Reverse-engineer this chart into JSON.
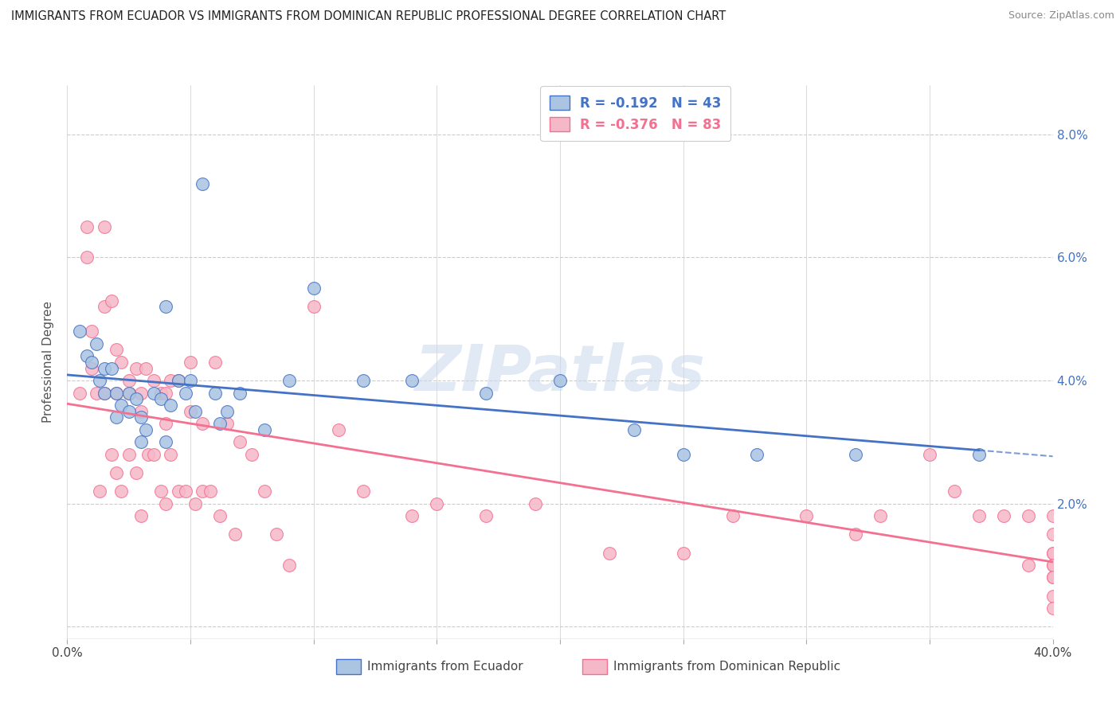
{
  "title": "IMMIGRANTS FROM ECUADOR VS IMMIGRANTS FROM DOMINICAN REPUBLIC PROFESSIONAL DEGREE CORRELATION CHART",
  "source": "Source: ZipAtlas.com",
  "ylabel": "Professional Degree",
  "y_ticks": [
    0.0,
    0.02,
    0.04,
    0.06,
    0.08
  ],
  "y_tick_labels": [
    "",
    "2.0%",
    "4.0%",
    "6.0%",
    "8.0%"
  ],
  "x_range": [
    0.0,
    0.4
  ],
  "y_range": [
    -0.002,
    0.088
  ],
  "ecuador_R": -0.192,
  "ecuador_N": 43,
  "domrep_R": -0.376,
  "domrep_N": 83,
  "ecuador_color": "#aac4e2",
  "domrep_color": "#f5b8c8",
  "ecuador_line_color": "#4472c4",
  "domrep_line_color": "#f47090",
  "watermark": "ZIPatlas",
  "ecuador_scatter_x": [
    0.005,
    0.008,
    0.01,
    0.012,
    0.013,
    0.015,
    0.015,
    0.018,
    0.02,
    0.02,
    0.022,
    0.025,
    0.025,
    0.028,
    0.03,
    0.03,
    0.032,
    0.035,
    0.038,
    0.04,
    0.04,
    0.042,
    0.045,
    0.048,
    0.05,
    0.052,
    0.055,
    0.06,
    0.062,
    0.065,
    0.07,
    0.08,
    0.09,
    0.1,
    0.12,
    0.14,
    0.17,
    0.2,
    0.23,
    0.25,
    0.28,
    0.32,
    0.37
  ],
  "ecuador_scatter_y": [
    0.048,
    0.044,
    0.043,
    0.046,
    0.04,
    0.042,
    0.038,
    0.042,
    0.038,
    0.034,
    0.036,
    0.038,
    0.035,
    0.037,
    0.034,
    0.03,
    0.032,
    0.038,
    0.037,
    0.052,
    0.03,
    0.036,
    0.04,
    0.038,
    0.04,
    0.035,
    0.072,
    0.038,
    0.033,
    0.035,
    0.038,
    0.032,
    0.04,
    0.055,
    0.04,
    0.04,
    0.038,
    0.04,
    0.032,
    0.028,
    0.028,
    0.028,
    0.028
  ],
  "domrep_scatter_x": [
    0.005,
    0.008,
    0.008,
    0.01,
    0.01,
    0.012,
    0.013,
    0.015,
    0.015,
    0.015,
    0.018,
    0.018,
    0.02,
    0.02,
    0.02,
    0.022,
    0.022,
    0.025,
    0.025,
    0.025,
    0.028,
    0.028,
    0.03,
    0.03,
    0.03,
    0.032,
    0.033,
    0.035,
    0.035,
    0.038,
    0.038,
    0.04,
    0.04,
    0.04,
    0.042,
    0.042,
    0.045,
    0.045,
    0.048,
    0.05,
    0.05,
    0.052,
    0.055,
    0.055,
    0.058,
    0.06,
    0.062,
    0.065,
    0.068,
    0.07,
    0.075,
    0.08,
    0.085,
    0.09,
    0.1,
    0.11,
    0.12,
    0.14,
    0.15,
    0.17,
    0.19,
    0.22,
    0.25,
    0.27,
    0.3,
    0.32,
    0.33,
    0.35,
    0.36,
    0.37,
    0.38,
    0.39,
    0.39,
    0.4,
    0.4,
    0.4,
    0.4,
    0.4,
    0.4,
    0.4,
    0.4,
    0.4,
    0.4
  ],
  "domrep_scatter_y": [
    0.038,
    0.065,
    0.06,
    0.048,
    0.042,
    0.038,
    0.022,
    0.065,
    0.052,
    0.038,
    0.053,
    0.028,
    0.045,
    0.038,
    0.025,
    0.043,
    0.022,
    0.04,
    0.038,
    0.028,
    0.042,
    0.025,
    0.038,
    0.035,
    0.018,
    0.042,
    0.028,
    0.04,
    0.028,
    0.038,
    0.022,
    0.038,
    0.033,
    0.02,
    0.04,
    0.028,
    0.04,
    0.022,
    0.022,
    0.043,
    0.035,
    0.02,
    0.033,
    0.022,
    0.022,
    0.043,
    0.018,
    0.033,
    0.015,
    0.03,
    0.028,
    0.022,
    0.015,
    0.01,
    0.052,
    0.032,
    0.022,
    0.018,
    0.02,
    0.018,
    0.02,
    0.012,
    0.012,
    0.018,
    0.018,
    0.015,
    0.018,
    0.028,
    0.022,
    0.018,
    0.018,
    0.018,
    0.01,
    0.018,
    0.015,
    0.012,
    0.01,
    0.008,
    0.012,
    0.01,
    0.008,
    0.005,
    0.003
  ]
}
